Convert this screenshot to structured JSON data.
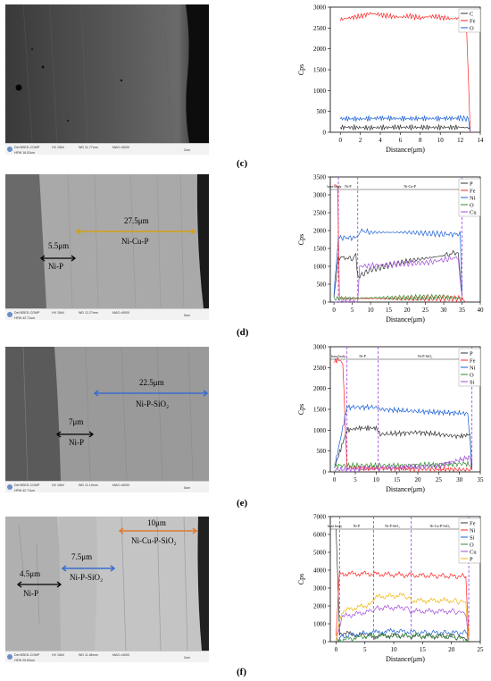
{
  "panels": [
    {
      "label": "(c)",
      "sem": {
        "bar": {
          "det": "Det BSED-COMP",
          "hv": "HV 15kV",
          "wd": "WD 11.77mm",
          "mag": "MAG x5000",
          "hfw": "HFW 16.02um",
          "scale": "2um"
        },
        "annotations": []
      }
    },
    {
      "label": "(d)",
      "sem": {
        "bar": {
          "det": "Det BSED-COMP",
          "hv": "HV 15kV",
          "wd": "WD 12.27mm",
          "mag": "MAG x5000",
          "hfw": "HFW 42.71um",
          "scale": "5um"
        },
        "annotations": [
          {
            "text": "27.5μm",
            "color": "#d4a017"
          },
          {
            "text": "Ni-Cu-P",
            "color": "#000000"
          },
          {
            "text": "5.5μm",
            "color": "#000000"
          },
          {
            "text": "Ni-P",
            "color": "#000000"
          }
        ]
      }
    },
    {
      "label": "(e)",
      "sem": {
        "bar": {
          "det": "Det BSED-COMP",
          "hv": "HV 15kV",
          "wd": "WD 11.19mm",
          "mag": "MAG x5000",
          "hfw": "HFW 42.71um",
          "scale": "5um"
        },
        "annotations": [
          {
            "text": "22.5μm",
            "color": "#000000"
          },
          {
            "text": "Ni-P-SiO₂",
            "color": "#000000"
          },
          {
            "text": "7μm",
            "color": "#000000"
          },
          {
            "text": "Ni-P",
            "color": "#000000"
          }
        ]
      }
    },
    {
      "label": "(f)",
      "sem": {
        "bar": {
          "det": "Det BSED-COMP",
          "hv": "HV 15kV",
          "wd": "WD 11.86mm",
          "mag": "MAG x3000",
          "hfw": "HFW 25.63um",
          "scale": "2um"
        },
        "annotations": [
          {
            "text": "10μm",
            "color": "#000000"
          },
          {
            "text": "Ni-Cu-P-SiO₂",
            "color": "#000000"
          },
          {
            "text": "7.5μm",
            "color": "#000000"
          },
          {
            "text": "Ni-P-SiO₂",
            "color": "#000000"
          },
          {
            "text": "4.5μm",
            "color": "#000000"
          },
          {
            "text": "Ni-P",
            "color": "#000000"
          }
        ]
      }
    }
  ],
  "chart_data": [
    {
      "type": "line",
      "xlabel": "Distance(μm)",
      "ylabel": "Cps",
      "xlim": [
        -1,
        14
      ],
      "ylim": [
        0,
        3000
      ],
      "xticks": [
        0,
        2,
        4,
        6,
        8,
        10,
        12,
        14
      ],
      "yticks": [
        0,
        500,
        1000,
        1500,
        2000,
        2500,
        3000
      ],
      "legend_position": "top-right",
      "regions": [],
      "series": [
        {
          "name": "C",
          "color": "#333333",
          "points": [
            [
              0,
              120
            ],
            [
              3,
              110
            ],
            [
              6,
              120
            ],
            [
              9,
              115
            ],
            [
              12,
              120
            ],
            [
              12.8,
              110
            ],
            [
              13,
              30
            ]
          ]
        },
        {
          "name": "Fe",
          "color": "#ff2020",
          "points": [
            [
              0,
              2700
            ],
            [
              1,
              2750
            ],
            [
              2,
              2780
            ],
            [
              3,
              2850
            ],
            [
              4,
              2820
            ],
            [
              5,
              2780
            ],
            [
              6,
              2760
            ],
            [
              7,
              2790
            ],
            [
              8,
              2740
            ],
            [
              9,
              2780
            ],
            [
              10,
              2760
            ],
            [
              11,
              2720
            ],
            [
              12,
              2740
            ],
            [
              12.6,
              2700
            ],
            [
              13,
              0
            ]
          ]
        },
        {
          "name": "O",
          "color": "#1a5fd8",
          "points": [
            [
              0,
              330
            ],
            [
              2,
              320
            ],
            [
              4,
              340
            ],
            [
              6,
              330
            ],
            [
              8,
              330
            ],
            [
              10,
              330
            ],
            [
              12,
              340
            ],
            [
              12.8,
              320
            ],
            [
              13,
              30
            ]
          ]
        }
      ]
    },
    {
      "type": "line",
      "xlabel": "Distance(μm)",
      "ylabel": "Cps",
      "xlim": [
        -1,
        40
      ],
      "ylim": [
        0,
        3500
      ],
      "xticks": [
        0,
        5,
        10,
        15,
        20,
        25,
        30,
        35,
        40
      ],
      "yticks": [
        0,
        500,
        1000,
        1500,
        2000,
        2500,
        3000,
        3500
      ],
      "legend_position": "top-right",
      "regions": [
        "base body",
        "Ni-P",
        "Ni-Cu-P"
      ],
      "series": [
        {
          "name": "P",
          "color": "#333333",
          "points": [
            [
              0,
              150
            ],
            [
              1.2,
              1250
            ],
            [
              3,
              1250
            ],
            [
              5,
              1200
            ],
            [
              6,
              1300
            ],
            [
              6.5,
              700
            ],
            [
              10,
              900
            ],
            [
              20,
              1150
            ],
            [
              30,
              1300
            ],
            [
              34,
              1400
            ],
            [
              35,
              200
            ]
          ]
        },
        {
          "name": "Fe",
          "color": "#ff2020",
          "points": [
            [
              0,
              3300
            ],
            [
              1,
              3250
            ],
            [
              1.5,
              100
            ],
            [
              35,
              100
            ],
            [
              36,
              0
            ]
          ]
        },
        {
          "name": "Ni",
          "color": "#1a5fd8",
          "points": [
            [
              0,
              200
            ],
            [
              1.2,
              1800
            ],
            [
              6,
              1800
            ],
            [
              7,
              2000
            ],
            [
              10,
              1950
            ],
            [
              20,
              1950
            ],
            [
              30,
              1900
            ],
            [
              34.5,
              1900
            ],
            [
              35,
              300
            ]
          ]
        },
        {
          "name": "O",
          "color": "#2e8b2e",
          "points": [
            [
              0,
              100
            ],
            [
              10,
              120
            ],
            [
              20,
              120
            ],
            [
              30,
              150
            ],
            [
              35,
              100
            ]
          ]
        },
        {
          "name": "Cu",
          "color": "#a04ad8",
          "points": [
            [
              0,
              0
            ],
            [
              6.5,
              0
            ],
            [
              7,
              1000
            ],
            [
              15,
              1050
            ],
            [
              25,
              1100
            ],
            [
              34,
              1250
            ],
            [
              35,
              150
            ]
          ]
        }
      ]
    },
    {
      "type": "line",
      "xlabel": "Distance(μm)",
      "ylabel": "Cps",
      "xlim": [
        -1,
        35
      ],
      "ylim": [
        0,
        3000
      ],
      "xticks": [
        0,
        5,
        10,
        15,
        20,
        25,
        30,
        35
      ],
      "yticks": [
        0,
        500,
        1000,
        1500,
        2000,
        2500,
        3000
      ],
      "legend_position": "top-right",
      "regions": [
        "base body",
        "Ni-P",
        "Ni-P-SiO₂"
      ],
      "series": [
        {
          "name": "P",
          "color": "#333333",
          "points": [
            [
              0,
              100
            ],
            [
              3,
              1000
            ],
            [
              6,
              1050
            ],
            [
              10,
              1050
            ],
            [
              11,
              900
            ],
            [
              20,
              950
            ],
            [
              30,
              850
            ],
            [
              32.5,
              900
            ],
            [
              33,
              100
            ]
          ]
        },
        {
          "name": "Fe",
          "color": "#ff2020",
          "points": [
            [
              0,
              2650
            ],
            [
              1,
              2700
            ],
            [
              2,
              2600
            ],
            [
              3,
              100
            ],
            [
              33,
              50
            ]
          ]
        },
        {
          "name": "Ni",
          "color": "#1a5fd8",
          "points": [
            [
              0,
              100
            ],
            [
              3,
              1550
            ],
            [
              10,
              1550
            ],
            [
              11,
              1500
            ],
            [
              20,
              1450
            ],
            [
              32,
              1400
            ],
            [
              33,
              200
            ]
          ]
        },
        {
          "name": "O",
          "color": "#2e8b2e",
          "points": [
            [
              0,
              150
            ],
            [
              15,
              150
            ],
            [
              25,
              180
            ],
            [
              32,
              200
            ],
            [
              33,
              100
            ]
          ]
        },
        {
          "name": "Si",
          "color": "#a04ad8",
          "points": [
            [
              0,
              50
            ],
            [
              10,
              80
            ],
            [
              15,
              100
            ],
            [
              25,
              150
            ],
            [
              32.5,
              350
            ],
            [
              33,
              50
            ]
          ]
        }
      ]
    },
    {
      "type": "line",
      "xlabel": "Distance(μm)",
      "ylabel": "Cps",
      "xlim": [
        -1,
        25
      ],
      "ylim": [
        0,
        7000
      ],
      "xticks": [
        0,
        5,
        10,
        15,
        20,
        25
      ],
      "yticks": [
        0,
        1000,
        2000,
        3000,
        4000,
        5000,
        6000,
        7000
      ],
      "legend_position": "top-right",
      "regions": [
        "base body",
        "Ni-P",
        "Ni-P-SiO₂",
        "Ni-Cu-P-SiO₂"
      ],
      "series": [
        {
          "name": "Fe",
          "color": "#333333",
          "points": [
            [
              0,
              6300
            ],
            [
              0.6,
              500
            ],
            [
              5,
              350
            ],
            [
              6,
              300
            ],
            [
              10,
              350
            ],
            [
              13,
              300
            ],
            [
              20,
              300
            ],
            [
              22.5,
              200
            ],
            [
              23,
              50
            ]
          ]
        },
        {
          "name": "Ni",
          "color": "#ff2020",
          "points": [
            [
              0,
              400
            ],
            [
              0.6,
              3800
            ],
            [
              5,
              3800
            ],
            [
              10,
              3750
            ],
            [
              15,
              3700
            ],
            [
              22.5,
              3650
            ],
            [
              23,
              300
            ]
          ]
        },
        {
          "name": "Si",
          "color": "#1a5fd8",
          "points": [
            [
              0,
              100
            ],
            [
              1,
              300
            ],
            [
              6,
              500
            ],
            [
              10,
              600
            ],
            [
              15,
              500
            ],
            [
              22.5,
              500
            ],
            [
              23,
              50
            ]
          ]
        },
        {
          "name": "O",
          "color": "#2e8b2e",
          "points": [
            [
              0,
              50
            ],
            [
              5,
              300
            ],
            [
              10,
              350
            ],
            [
              20,
              300
            ],
            [
              23,
              50
            ]
          ]
        },
        {
          "name": "Cu",
          "color": "#a04ad8",
          "points": [
            [
              0,
              50
            ],
            [
              1,
              1400
            ],
            [
              6,
              1700
            ],
            [
              7,
              1900
            ],
            [
              12,
              1900
            ],
            [
              13,
              1700
            ],
            [
              20,
              1700
            ],
            [
              22.5,
              1600
            ],
            [
              23,
              50
            ]
          ]
        },
        {
          "name": "P",
          "color": "#f0b400",
          "points": [
            [
              0,
              50
            ],
            [
              1,
              1700
            ],
            [
              6,
              2100
            ],
            [
              7,
              2500
            ],
            [
              12,
              2600
            ],
            [
              13,
              2300
            ],
            [
              20,
              2300
            ],
            [
              22.5,
              2200
            ],
            [
              23,
              50
            ]
          ]
        }
      ]
    }
  ]
}
